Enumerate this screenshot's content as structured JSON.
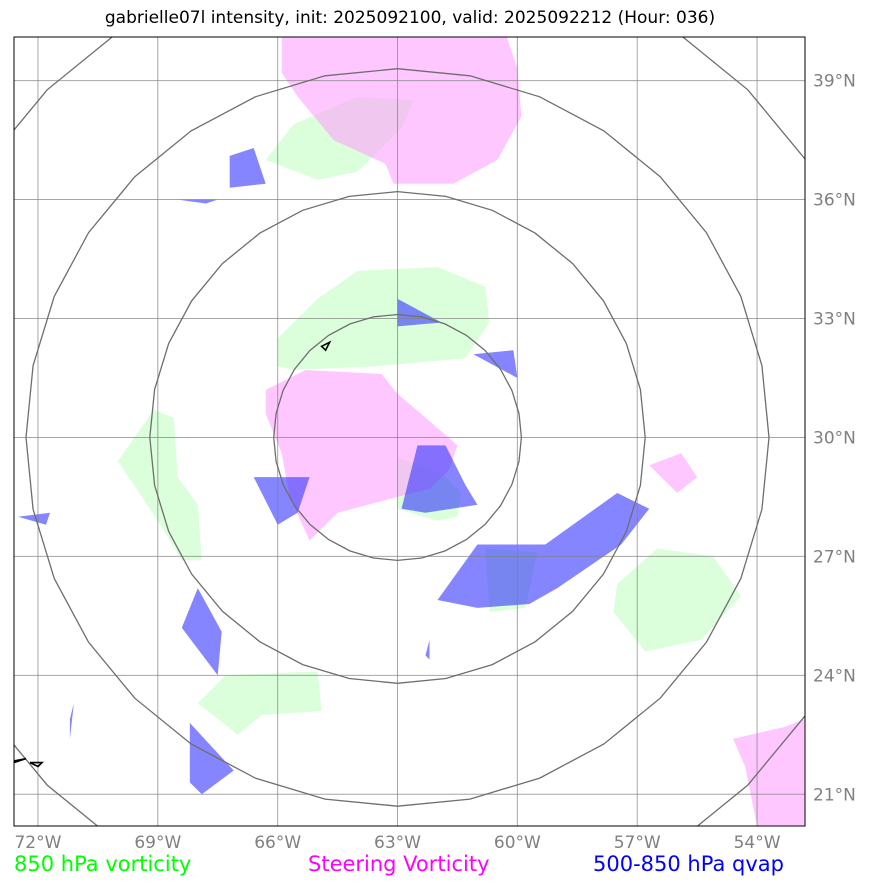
{
  "title": "gabrielle07l intensity, init: 2025092100, valid: 2025092212 (Hour: 036)",
  "colors": {
    "vort850": "#00ff00",
    "steering": "#ff00ff",
    "qvap": "#0000ff",
    "vort850_fill": "#ccffcc",
    "steering_fill": "#ff99ff",
    "qvap_fill": "#3333ff",
    "grid": "#808080",
    "rings": "#6e6e6e"
  },
  "map": {
    "lon_range": [
      -72.6,
      -52.8
    ],
    "lat_range": [
      20.2,
      40.1
    ],
    "gridlines": true,
    "lon_ticks": [
      {
        "value": -72,
        "label": "72°W"
      },
      {
        "value": -69,
        "label": "69°W"
      },
      {
        "value": -66,
        "label": "66°W"
      },
      {
        "value": -63,
        "label": "63°W"
      },
      {
        "value": -60,
        "label": "60°W"
      },
      {
        "value": -57,
        "label": "57°W"
      },
      {
        "value": -54,
        "label": "54°W"
      }
    ],
    "lat_ticks": [
      {
        "value": 21,
        "label": "21°N"
      },
      {
        "value": 24,
        "label": "24°N"
      },
      {
        "value": 27,
        "label": "27°N"
      },
      {
        "value": 30,
        "label": "30°N"
      },
      {
        "value": 33,
        "label": "33°N"
      },
      {
        "value": 36,
        "label": "36°N"
      },
      {
        "value": 39,
        "label": "39°N"
      }
    ],
    "range_rings": {
      "center": [
        -63.0,
        30.0
      ],
      "radii_deg": [
        3.1,
        6.2,
        9.3,
        12.4
      ]
    }
  },
  "layers": {
    "vort850": [
      [
        [
          -66.0,
          32.5
        ],
        [
          -65.0,
          33.5
        ],
        [
          -64.0,
          34.2
        ],
        [
          -62.0,
          34.3
        ],
        [
          -60.8,
          33.8
        ],
        [
          -60.7,
          32.9
        ],
        [
          -61.3,
          32.0
        ],
        [
          -63.5,
          31.8
        ],
        [
          -65.6,
          31.7
        ],
        [
          -66.0,
          31.8
        ]
      ],
      [
        [
          -66.3,
          37.0
        ],
        [
          -65.6,
          37.9
        ],
        [
          -64.0,
          38.6
        ],
        [
          -62.6,
          38.5
        ],
        [
          -62.9,
          37.8
        ],
        [
          -64.0,
          36.7
        ],
        [
          -65.0,
          36.5
        ]
      ],
      [
        [
          -70.0,
          29.4
        ],
        [
          -69.1,
          30.7
        ],
        [
          -68.6,
          30.5
        ],
        [
          -68.5,
          29.0
        ],
        [
          -68.0,
          28.3
        ],
        [
          -67.9,
          26.9
        ],
        [
          -68.4,
          26.9
        ],
        [
          -69.0,
          27.9
        ]
      ],
      [
        [
          -68.0,
          23.3
        ],
        [
          -67.3,
          24.0
        ],
        [
          -65.0,
          24.1
        ],
        [
          -64.9,
          23.1
        ],
        [
          -66.4,
          23.0
        ],
        [
          -67.0,
          22.5
        ]
      ],
      [
        [
          -63.0,
          29.5
        ],
        [
          -61.9,
          29.1
        ],
        [
          -61.4,
          28.6
        ],
        [
          -61.5,
          28.0
        ],
        [
          -62.0,
          27.9
        ],
        [
          -63.0,
          28.2
        ]
      ],
      [
        [
          -57.6,
          25.6
        ],
        [
          -56.8,
          24.6
        ],
        [
          -55.4,
          24.9
        ],
        [
          -54.4,
          26.0
        ],
        [
          -55.1,
          27.0
        ],
        [
          -56.5,
          27.2
        ],
        [
          -57.5,
          26.3
        ]
      ],
      [
        [
          -60.8,
          27.2
        ],
        [
          -59.5,
          27.1
        ],
        [
          -59.8,
          25.7
        ],
        [
          -60.7,
          25.6
        ]
      ]
    ],
    "steering": [
      [
        [
          -65.9,
          40.2
        ],
        [
          -60.3,
          40.2
        ],
        [
          -60.0,
          39.3
        ],
        [
          -59.9,
          38.1
        ],
        [
          -60.5,
          37.0
        ],
        [
          -61.6,
          36.4
        ],
        [
          -63.1,
          36.4
        ],
        [
          -63.3,
          36.9
        ],
        [
          -64.6,
          37.5
        ],
        [
          -65.5,
          38.6
        ],
        [
          -65.9,
          39.2
        ]
      ],
      [
        [
          -66.3,
          31.2
        ],
        [
          -65.3,
          31.7
        ],
        [
          -63.4,
          31.6
        ],
        [
          -63.0,
          31.1
        ],
        [
          -62.3,
          30.5
        ],
        [
          -61.5,
          29.8
        ],
        [
          -61.7,
          29.2
        ],
        [
          -62.2,
          28.7
        ],
        [
          -63.0,
          28.5
        ],
        [
          -64.5,
          28.1
        ],
        [
          -65.2,
          27.4
        ],
        [
          -65.7,
          28.5
        ],
        [
          -65.9,
          29.6
        ],
        [
          -66.3,
          30.6
        ]
      ],
      [
        [
          -56.7,
          29.3
        ],
        [
          -55.9,
          29.6
        ],
        [
          -55.5,
          29.0
        ],
        [
          -56.0,
          28.6
        ]
      ],
      [
        [
          -54.6,
          22.4
        ],
        [
          -53.3,
          22.7
        ],
        [
          -52.8,
          22.9
        ],
        [
          -52.8,
          20.2
        ],
        [
          -54.0,
          20.2
        ],
        [
          -54.3,
          21.7
        ]
      ]
    ],
    "qvap": [
      [
        [
          -62.5,
          29.8
        ],
        [
          -61.8,
          29.8
        ],
        [
          -61.3,
          28.8
        ],
        [
          -61.0,
          28.3
        ],
        [
          -62.3,
          28.1
        ],
        [
          -62.9,
          28.2
        ]
      ],
      [
        [
          -63.0,
          33.5
        ],
        [
          -63.0,
          32.8
        ],
        [
          -61.9,
          32.9
        ]
      ],
      [
        [
          -61.1,
          32.1
        ],
        [
          -60.1,
          32.2
        ],
        [
          -60.0,
          31.5
        ]
      ],
      [
        [
          -66.6,
          29.0
        ],
        [
          -65.2,
          29.0
        ],
        [
          -65.5,
          28.1
        ],
        [
          -66.0,
          27.8
        ]
      ],
      [
        [
          -67.2,
          37.1
        ],
        [
          -66.6,
          37.3
        ],
        [
          -66.3,
          36.4
        ],
        [
          -67.2,
          36.3
        ]
      ],
      [
        [
          -68.0,
          26.2
        ],
        [
          -67.4,
          25.1
        ],
        [
          -67.5,
          24.0
        ],
        [
          -68.4,
          25.2
        ]
      ],
      [
        [
          -68.2,
          22.8
        ],
        [
          -67.1,
          21.6
        ],
        [
          -67.9,
          21.0
        ],
        [
          -68.2,
          21.3
        ]
      ],
      [
        [
          -62.0,
          25.9
        ],
        [
          -61.0,
          27.3
        ],
        [
          -59.3,
          27.3
        ],
        [
          -57.5,
          28.6
        ],
        [
          -56.7,
          28.2
        ],
        [
          -57.4,
          27.3
        ],
        [
          -59.0,
          26.2
        ],
        [
          -59.7,
          25.8
        ],
        [
          -61.0,
          25.7
        ]
      ],
      [
        [
          -72.5,
          28.0
        ],
        [
          -71.7,
          28.1
        ],
        [
          -71.8,
          27.8
        ]
      ],
      [
        [
          -68.5,
          36.0
        ],
        [
          -67.5,
          36.0
        ],
        [
          -67.8,
          35.9
        ]
      ],
      [
        [
          -71.2,
          22.9
        ],
        [
          -71.1,
          23.3
        ],
        [
          -71.2,
          22.4
        ]
      ],
      [
        [
          -62.2,
          24.9
        ],
        [
          -62.2,
          24.4
        ],
        [
          -62.3,
          24.5
        ]
      ]
    ]
  },
  "coastlines": [
    [
      [
        -64.8,
        32.2
      ],
      [
        -64.7,
        32.4
      ],
      [
        -64.9,
        32.3
      ]
    ],
    [
      [
        -72.8,
        21.8
      ],
      [
        -72.3,
        21.9
      ],
      [
        -72.6,
        21.8
      ]
    ],
    [
      [
        -72.2,
        21.8
      ],
      [
        -71.9,
        21.8
      ],
      [
        -72.0,
        21.7
      ]
    ]
  ],
  "legend": [
    {
      "label": "850 hPa vorticity",
      "color": "#00ff00"
    },
    {
      "label": "Steering Vorticity",
      "color": "#ff00ff"
    },
    {
      "label": "500-850 hPa qvap",
      "color": "#0000ff"
    }
  ]
}
